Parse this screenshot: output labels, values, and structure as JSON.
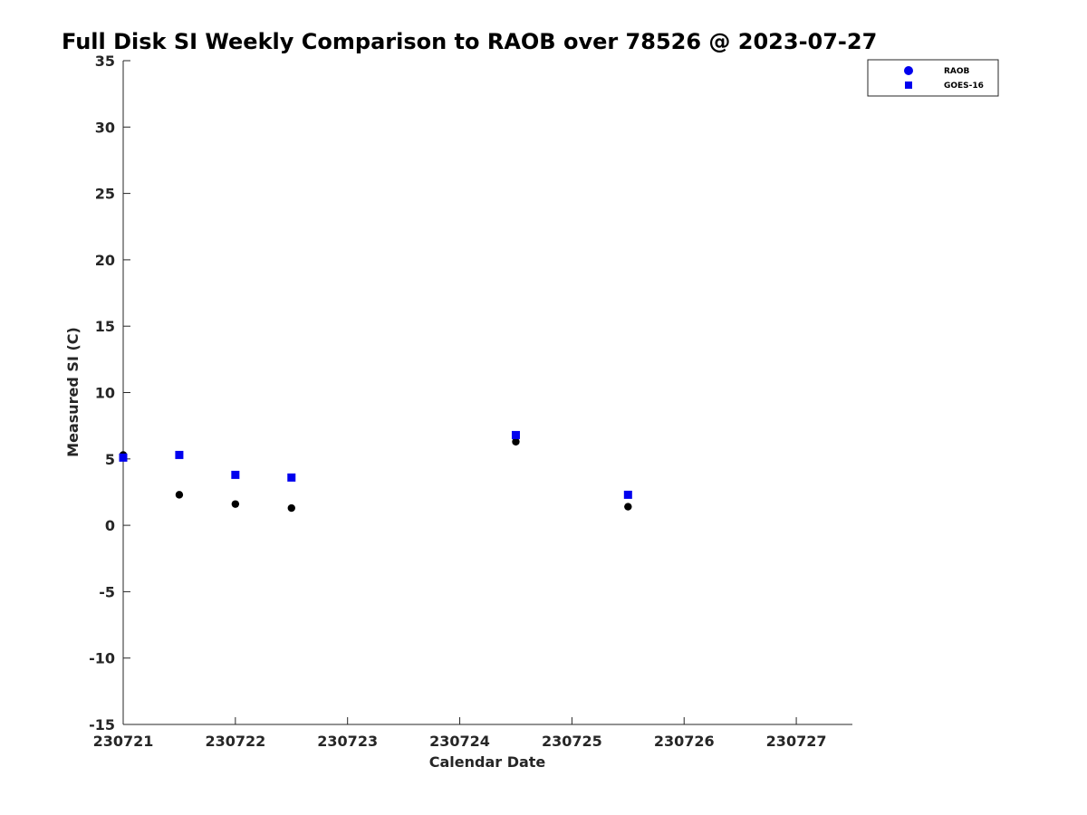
{
  "chart_data": {
    "type": "scatter",
    "title": "Full Disk SI Weekly Comparison to RAOB over 78526 @ 2023-07-27",
    "xlabel": "Calendar Date",
    "ylabel": "Measured SI (C)",
    "x_ticks": [
      "230721",
      "230722",
      "230723",
      "230724",
      "230725",
      "230726",
      "230727"
    ],
    "x_range": [
      "2023-07-21",
      "2023-07-27 12:00"
    ],
    "ylim": [
      -15,
      35
    ],
    "y_ticks": [
      "35",
      "30",
      "25",
      "20",
      "15",
      "10",
      "5",
      "0",
      "-5",
      "-10",
      "-15"
    ],
    "grid": false,
    "legend_position": "top-right",
    "series": [
      {
        "name": "RAOB",
        "marker": "circle",
        "color": "#000000",
        "legend_color": "#0000ee",
        "x": [
          "2023-07-21 00:00",
          "2023-07-21 12:00",
          "2023-07-22 00:00",
          "2023-07-22 12:00",
          "2023-07-24 12:00",
          "2023-07-25 12:00"
        ],
        "y": [
          5.3,
          2.3,
          1.6,
          1.3,
          6.3,
          1.4
        ]
      },
      {
        "name": "GOES-16",
        "marker": "square",
        "color": "#0000ee",
        "legend_color": "#0000ee",
        "x": [
          "2023-07-21 00:00",
          "2023-07-21 12:00",
          "2023-07-22 00:00",
          "2023-07-22 12:00",
          "2023-07-24 12:00",
          "2023-07-25 12:00"
        ],
        "y": [
          5.1,
          5.3,
          3.8,
          3.6,
          6.8,
          2.3
        ]
      }
    ]
  }
}
